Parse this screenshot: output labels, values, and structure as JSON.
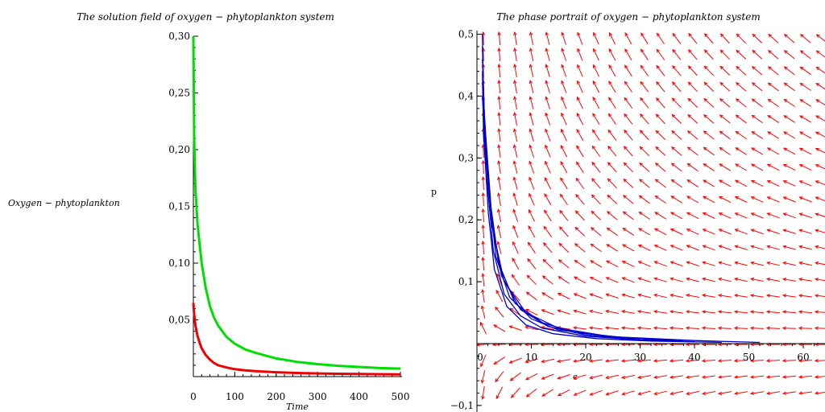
{
  "chart_data": [
    {
      "type": "line",
      "title": "The solution field of oxygen − phytoplankton system",
      "xlabel": "Time",
      "ylabel": "Oxygen − phytoplankton",
      "xlim": [
        0,
        500
      ],
      "ylim": [
        0,
        0.3
      ],
      "xticks": [
        0,
        100,
        200,
        300,
        400,
        500
      ],
      "xtick_labels": [
        "0",
        "100",
        "200",
        "300",
        "400",
        "500"
      ],
      "yticks": [
        0.05,
        0.1,
        0.15,
        0.2,
        0.25,
        0.3
      ],
      "ytick_labels": [
        "0,05",
        "0,10",
        "0,15",
        "0,20",
        "0,25",
        "0,30"
      ],
      "grid": false,
      "series": [
        {
          "color": "#00dd00",
          "x": [
            0,
            2,
            5,
            10,
            15,
            20,
            30,
            40,
            50,
            60,
            80,
            100,
            125,
            150,
            200,
            250,
            300,
            350,
            400,
            450,
            500
          ],
          "y": [
            0.3,
            0.21,
            0.165,
            0.135,
            0.117,
            0.1,
            0.078,
            0.062,
            0.052,
            0.045,
            0.035,
            0.029,
            0.024,
            0.021,
            0.016,
            0.013,
            0.011,
            0.0095,
            0.0085,
            0.0075,
            0.007
          ]
        },
        {
          "color": "#ee0000",
          "x": [
            0,
            2,
            5,
            10,
            15,
            20,
            30,
            40,
            50,
            60,
            80,
            100,
            125,
            150,
            200,
            250,
            300,
            350,
            400,
            450,
            500
          ],
          "y": [
            0.065,
            0.055,
            0.045,
            0.036,
            0.03,
            0.025,
            0.019,
            0.015,
            0.012,
            0.01,
            0.008,
            0.0065,
            0.0055,
            0.0048,
            0.0038,
            0.0032,
            0.0028,
            0.0025,
            0.0023,
            0.0021,
            0.002
          ]
        }
      ]
    },
    {
      "type": "line",
      "subtype": "phase-portrait",
      "title": "The phase portrait of oxygen − phytoplankton system",
      "xlabel": "c",
      "ylabel": "p",
      "xlim": [
        0,
        62
      ],
      "ylim": [
        -0.12,
        0.52
      ],
      "xticks": [
        0,
        10,
        20,
        30,
        40,
        50,
        60
      ],
      "xtick_labels": [
        "0",
        "10",
        "20",
        "30",
        "40",
        "50",
        "60"
      ],
      "yticks": [
        -0.1,
        0.1,
        0.2,
        0.3,
        0.4,
        0.5
      ],
      "ytick_labels": [
        "−0,1",
        "0,1",
        "0,2",
        "0,3",
        "0,4",
        "0,5"
      ],
      "vector_field_color": "#ff0000",
      "trajectory_color": "#0000cc",
      "trajectories": [
        {
          "x": [
            1,
            1.2,
            2,
            3,
            5,
            8,
            12,
            20,
            30,
            40
          ],
          "y": [
            0.5,
            0.4,
            0.25,
            0.15,
            0.08,
            0.045,
            0.025,
            0.012,
            0.006,
            0.003
          ]
        },
        {
          "x": [
            1,
            1.3,
            2.3,
            3.5,
            6,
            10,
            15,
            25,
            40,
            52
          ],
          "y": [
            0.48,
            0.38,
            0.24,
            0.14,
            0.075,
            0.04,
            0.022,
            0.011,
            0.005,
            0.002
          ]
        },
        {
          "x": [
            1,
            1.4,
            2.6,
            4,
            7,
            12,
            18,
            28,
            38
          ],
          "y": [
            0.46,
            0.36,
            0.22,
            0.13,
            0.065,
            0.034,
            0.018,
            0.009,
            0.004
          ]
        },
        {
          "x": [
            1,
            1.2,
            2.1,
            3.2,
            5.5,
            9,
            14,
            22,
            32,
            45
          ],
          "y": [
            0.44,
            0.34,
            0.21,
            0.12,
            0.06,
            0.03,
            0.016,
            0.008,
            0.004,
            0.002
          ]
        },
        {
          "x": [
            1,
            1.5,
            2.8,
            4.5,
            8,
            13,
            20,
            30
          ],
          "y": [
            0.42,
            0.32,
            0.19,
            0.11,
            0.055,
            0.028,
            0.014,
            0.006
          ]
        },
        {
          "x": [
            1,
            1.6,
            3,
            5,
            9,
            15,
            24,
            35
          ],
          "y": [
            0.4,
            0.3,
            0.18,
            0.1,
            0.05,
            0.025,
            0.012,
            0.005
          ]
        }
      ]
    }
  ]
}
